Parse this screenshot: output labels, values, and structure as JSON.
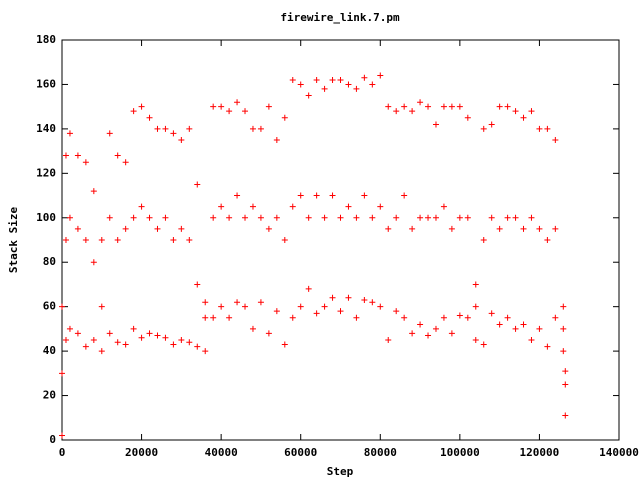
{
  "chart_data": {
    "type": "scatter",
    "title": "firewire_link.7.pm",
    "x_label": "Step",
    "y_label": "Stack Size",
    "color": "#ff0000",
    "xlim": [
      0,
      140000
    ],
    "xticks": [
      0,
      20000,
      40000,
      60000,
      80000,
      100000,
      120000,
      140000
    ],
    "ylim": [
      0,
      180
    ],
    "yticks": [
      0,
      20,
      40,
      60,
      80,
      100,
      120,
      140,
      160,
      180
    ],
    "x": [
      0,
      0,
      0,
      1000,
      1000,
      1000,
      2000,
      2000,
      2000,
      4000,
      4000,
      4000,
      6000,
      6000,
      6000,
      8000,
      8000,
      8000,
      10000,
      10000,
      10000,
      12000,
      12000,
      12000,
      14000,
      14000,
      14000,
      16000,
      16000,
      16000,
      18000,
      18000,
      18000,
      20000,
      20000,
      20000,
      22000,
      22000,
      22000,
      24000,
      24000,
      24000,
      26000,
      26000,
      26000,
      28000,
      28000,
      28000,
      30000,
      30000,
      30000,
      32000,
      32000,
      32000,
      34000,
      34000,
      34000,
      36000,
      36000,
      36000,
      38000,
      38000,
      38000,
      40000,
      40000,
      40000,
      42000,
      42000,
      42000,
      44000,
      44000,
      44000,
      46000,
      46000,
      46000,
      48000,
      48000,
      48000,
      50000,
      50000,
      50000,
      52000,
      52000,
      52000,
      54000,
      54000,
      54000,
      56000,
      56000,
      56000,
      58000,
      58000,
      58000,
      60000,
      60000,
      60000,
      62000,
      62000,
      62000,
      64000,
      64000,
      64000,
      66000,
      66000,
      66000,
      68000,
      68000,
      68000,
      70000,
      70000,
      70000,
      72000,
      72000,
      72000,
      74000,
      74000,
      74000,
      76000,
      76000,
      76000,
      78000,
      78000,
      78000,
      80000,
      80000,
      80000,
      82000,
      82000,
      82000,
      84000,
      84000,
      84000,
      86000,
      86000,
      86000,
      88000,
      88000,
      88000,
      90000,
      90000,
      90000,
      92000,
      92000,
      92000,
      94000,
      94000,
      94000,
      96000,
      96000,
      96000,
      98000,
      98000,
      98000,
      100000,
      100000,
      100000,
      102000,
      102000,
      102000,
      104000,
      104000,
      104000,
      106000,
      106000,
      106000,
      108000,
      108000,
      108000,
      110000,
      110000,
      110000,
      112000,
      112000,
      112000,
      114000,
      114000,
      114000,
      116000,
      116000,
      116000,
      118000,
      118000,
      118000,
      120000,
      120000,
      120000,
      122000,
      122000,
      122000,
      124000,
      124000,
      124000,
      126000,
      126000,
      126000,
      126500,
      126500,
      126500
    ],
    "values": [
      2,
      30,
      60,
      45,
      90,
      128,
      50,
      100,
      138,
      48,
      95,
      128,
      42,
      90,
      125,
      45,
      80,
      112,
      40,
      60,
      90,
      48,
      100,
      138,
      44,
      90,
      128,
      43,
      95,
      125,
      50,
      100,
      148,
      46,
      105,
      150,
      48,
      100,
      145,
      47,
      95,
      140,
      46,
      100,
      140,
      43,
      90,
      138,
      45,
      95,
      135,
      44,
      90,
      140,
      42,
      70,
      115,
      40,
      55,
      62,
      55,
      100,
      150,
      60,
      105,
      150,
      55,
      100,
      148,
      62,
      110,
      152,
      60,
      100,
      148,
      50,
      105,
      140,
      62,
      100,
      140,
      48,
      95,
      150,
      58,
      100,
      135,
      43,
      90,
      145,
      55,
      105,
      162,
      60,
      110,
      160,
      68,
      100,
      155,
      57,
      110,
      162,
      60,
      100,
      158,
      64,
      110,
      162,
      58,
      100,
      162,
      64,
      105,
      160,
      55,
      100,
      158,
      63,
      110,
      163,
      62,
      100,
      160,
      60,
      105,
      164,
      45,
      95,
      150,
      58,
      100,
      148,
      55,
      110,
      150,
      48,
      95,
      148,
      52,
      100,
      152,
      47,
      100,
      150,
      50,
      100,
      142,
      55,
      105,
      150,
      48,
      95,
      150,
      56,
      100,
      150,
      55,
      100,
      145,
      45,
      60,
      70,
      43,
      90,
      140,
      57,
      100,
      142,
      52,
      95,
      150,
      55,
      100,
      150,
      50,
      100,
      148,
      52,
      95,
      145,
      45,
      100,
      148,
      50,
      95,
      140,
      42,
      90,
      140,
      55,
      95,
      135,
      40,
      50,
      60,
      11,
      25,
      31
    ]
  }
}
